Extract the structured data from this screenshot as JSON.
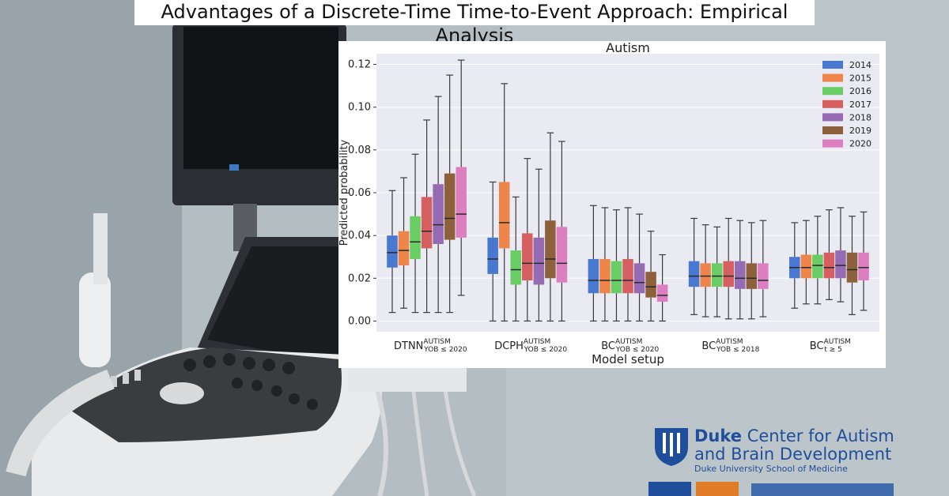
{
  "banner": {
    "title": "Advantages of a Discrete-Time Time-to-Event Approach: Empirical Analysis"
  },
  "logo": {
    "org_bold": "Duke",
    "org_rest": "Center for Autism",
    "line2": "and Brain Development",
    "line3": "Duke University School of Medicine"
  },
  "chart_data": {
    "type": "box",
    "title": "Autism",
    "xlabel": "Model setup",
    "ylabel": "Predicted probability",
    "ylim": [
      -0.005,
      0.125
    ],
    "yticks": [
      0.0,
      0.02,
      0.04,
      0.06,
      0.08,
      0.1,
      0.12
    ],
    "ytick_labels": [
      "0.00",
      "0.02",
      "0.04",
      "0.06",
      "0.08",
      "0.10",
      "0.12"
    ],
    "grid": true,
    "legend_position": "top-right",
    "categories": [
      {
        "main": "DTNN",
        "sup": "AUTISM",
        "sub": "YOB ≤ 2020"
      },
      {
        "main": "DCPH",
        "sup": "AUTISM",
        "sub": "YOB ≤ 2020"
      },
      {
        "main": "BC",
        "sup": "AUTISM",
        "sub": "YOB ≤ 2020"
      },
      {
        "main": "BC",
        "sup": "AUTISM",
        "sub": "YOB ≤ 2018"
      },
      {
        "main": "BC",
        "sup": "AUTISM",
        "sub": "t ≥ 5"
      }
    ],
    "series": [
      {
        "name": "2014",
        "color": "#4878d0",
        "boxes": [
          {
            "min": 0.004,
            "q1": 0.025,
            "median": 0.032,
            "q3": 0.04,
            "max": 0.061
          },
          {
            "min": 0.0,
            "q1": 0.022,
            "median": 0.029,
            "q3": 0.039,
            "max": 0.065
          },
          {
            "min": 0.0,
            "q1": 0.013,
            "median": 0.019,
            "q3": 0.029,
            "max": 0.054
          },
          {
            "min": 0.003,
            "q1": 0.016,
            "median": 0.021,
            "q3": 0.028,
            "max": 0.048
          },
          {
            "min": 0.006,
            "q1": 0.02,
            "median": 0.025,
            "q3": 0.03,
            "max": 0.046
          }
        ]
      },
      {
        "name": "2015",
        "color": "#ee854a",
        "boxes": [
          {
            "min": 0.006,
            "q1": 0.026,
            "median": 0.033,
            "q3": 0.042,
            "max": 0.067
          },
          {
            "min": 0.0,
            "q1": 0.034,
            "median": 0.046,
            "q3": 0.065,
            "max": 0.111
          },
          {
            "min": 0.0,
            "q1": 0.013,
            "median": 0.019,
            "q3": 0.029,
            "max": 0.053
          },
          {
            "min": 0.002,
            "q1": 0.016,
            "median": 0.021,
            "q3": 0.027,
            "max": 0.045
          },
          {
            "min": 0.008,
            "q1": 0.02,
            "median": 0.025,
            "q3": 0.031,
            "max": 0.047
          }
        ]
      },
      {
        "name": "2016",
        "color": "#6acc64",
        "boxes": [
          {
            "min": 0.004,
            "q1": 0.029,
            "median": 0.037,
            "q3": 0.049,
            "max": 0.078
          },
          {
            "min": 0.0,
            "q1": 0.017,
            "median": 0.024,
            "q3": 0.033,
            "max": 0.058
          },
          {
            "min": 0.0,
            "q1": 0.013,
            "median": 0.019,
            "q3": 0.028,
            "max": 0.052
          },
          {
            "min": 0.002,
            "q1": 0.016,
            "median": 0.021,
            "q3": 0.027,
            "max": 0.044
          },
          {
            "min": 0.008,
            "q1": 0.02,
            "median": 0.026,
            "q3": 0.031,
            "max": 0.049
          }
        ]
      },
      {
        "name": "2017",
        "color": "#d65f5f",
        "boxes": [
          {
            "min": 0.004,
            "q1": 0.034,
            "median": 0.042,
            "q3": 0.058,
            "max": 0.094
          },
          {
            "min": 0.0,
            "q1": 0.019,
            "median": 0.027,
            "q3": 0.041,
            "max": 0.076
          },
          {
            "min": 0.0,
            "q1": 0.013,
            "median": 0.019,
            "q3": 0.029,
            "max": 0.053
          },
          {
            "min": 0.001,
            "q1": 0.016,
            "median": 0.021,
            "q3": 0.028,
            "max": 0.048
          },
          {
            "min": 0.01,
            "q1": 0.02,
            "median": 0.025,
            "q3": 0.032,
            "max": 0.052
          }
        ]
      },
      {
        "name": "2018",
        "color": "#956cb4",
        "boxes": [
          {
            "min": 0.004,
            "q1": 0.036,
            "median": 0.045,
            "q3": 0.064,
            "max": 0.105
          },
          {
            "min": 0.0,
            "q1": 0.017,
            "median": 0.027,
            "q3": 0.039,
            "max": 0.071
          },
          {
            "min": 0.0,
            "q1": 0.013,
            "median": 0.018,
            "q3": 0.027,
            "max": 0.05
          },
          {
            "min": 0.001,
            "q1": 0.015,
            "median": 0.02,
            "q3": 0.028,
            "max": 0.047
          },
          {
            "min": 0.009,
            "q1": 0.02,
            "median": 0.026,
            "q3": 0.033,
            "max": 0.053
          }
        ]
      },
      {
        "name": "2019",
        "color": "#8c613c",
        "boxes": [
          {
            "min": 0.004,
            "q1": 0.038,
            "median": 0.048,
            "q3": 0.069,
            "max": 0.115
          },
          {
            "min": 0.0,
            "q1": 0.02,
            "median": 0.029,
            "q3": 0.047,
            "max": 0.088
          },
          {
            "min": 0.0,
            "q1": 0.011,
            "median": 0.016,
            "q3": 0.023,
            "max": 0.042
          },
          {
            "min": 0.001,
            "q1": 0.015,
            "median": 0.02,
            "q3": 0.027,
            "max": 0.046
          },
          {
            "min": 0.003,
            "q1": 0.018,
            "median": 0.024,
            "q3": 0.032,
            "max": 0.049
          }
        ]
      },
      {
        "name": "2020",
        "color": "#dc7ec0",
        "boxes": [
          {
            "min": 0.012,
            "q1": 0.039,
            "median": 0.05,
            "q3": 0.072,
            "max": 0.122
          },
          {
            "min": 0.0,
            "q1": 0.018,
            "median": 0.027,
            "q3": 0.044,
            "max": 0.084
          },
          {
            "min": 0.0,
            "q1": 0.009,
            "median": 0.012,
            "q3": 0.017,
            "max": 0.031
          },
          {
            "min": 0.002,
            "q1": 0.015,
            "median": 0.019,
            "q3": 0.027,
            "max": 0.047
          },
          {
            "min": 0.005,
            "q1": 0.019,
            "median": 0.025,
            "q3": 0.032,
            "max": 0.051
          }
        ]
      }
    ]
  }
}
